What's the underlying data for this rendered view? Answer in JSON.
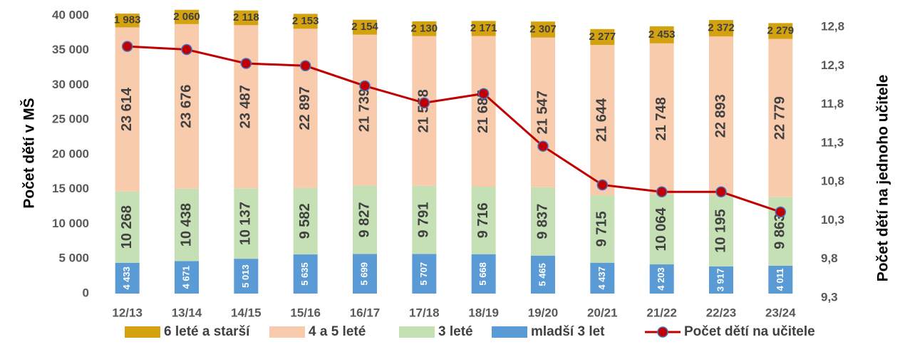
{
  "chart_data": {
    "type": "bar",
    "categories": [
      "12/13",
      "13/14",
      "14/15",
      "15/16",
      "16/17",
      "17/18",
      "18/19",
      "19/20",
      "20/21",
      "21/22",
      "22/23",
      "23/24"
    ],
    "stacked": true,
    "series": [
      {
        "name": "mladší 3 let",
        "color": "#5b9bd5",
        "values": [
          4433,
          4671,
          5013,
          5635,
          5699,
          5707,
          5668,
          5465,
          4437,
          4203,
          3917,
          4011
        ],
        "value_labels": [
          "4 433",
          "4 671",
          "5 013",
          "5 635",
          "5 699",
          "5 707",
          "5 668",
          "5 465",
          "4 437",
          "4 203",
          "3 917",
          "4 011"
        ]
      },
      {
        "name": "3 leté",
        "color": "#c5e0b4",
        "values": [
          10268,
          10438,
          10137,
          9582,
          9827,
          9791,
          9716,
          9837,
          9715,
          10064,
          10195,
          9863
        ],
        "value_labels": [
          "10 268",
          "10 438",
          "10 137",
          "9 582",
          "9 827",
          "9 791",
          "9 716",
          "9 837",
          "9 715",
          "10 064",
          "10 195",
          "9 863"
        ]
      },
      {
        "name": "4 a 5 leté",
        "color": "#f8cbad",
        "values": [
          23614,
          23676,
          23487,
          22897,
          21739,
          21558,
          21685,
          21547,
          21644,
          21748,
          22893,
          22779
        ],
        "value_labels": [
          "23 614",
          "23 676",
          "23 487",
          "22 897",
          "21 739",
          "21 558",
          "21 685",
          "21 547",
          "21 644",
          "21 748",
          "22 893",
          "22 779"
        ]
      },
      {
        "name": "6 leté a starší",
        "color": "#d4a20f",
        "values": [
          1983,
          2060,
          2118,
          2153,
          2154,
          2130,
          2171,
          2307,
          2277,
          2453,
          2372,
          2279
        ],
        "value_labels": [
          "1 983",
          "2 060",
          "2 118",
          "2 153",
          "2 154",
          "2 130",
          "2 171",
          "2 307",
          "2 277",
          "2 453",
          "2 372",
          "2 279"
        ]
      },
      {
        "name": "Počet dětí na učitele",
        "color": "#c00000",
        "type": "line",
        "axis": "y2",
        "values": [
          12.55,
          12.51,
          12.33,
          12.3,
          12.04,
          11.82,
          11.94,
          11.26,
          10.76,
          10.67,
          10.67,
          10.41
        ]
      }
    ],
    "ylabel": "Počet dětí v MŠ",
    "y2label": "Počet dětí na jednoho učitele",
    "ylim": [
      0,
      40000
    ],
    "yticks": [
      {
        "value": 0,
        "label": "0"
      },
      {
        "value": 5000,
        "label": "5 000"
      },
      {
        "value": 10000,
        "label": "10 000"
      },
      {
        "value": 15000,
        "label": "15 000"
      },
      {
        "value": 20000,
        "label": "20 000"
      },
      {
        "value": 25000,
        "label": "25 000"
      },
      {
        "value": 30000,
        "label": "30 000"
      },
      {
        "value": 35000,
        "label": "35 000"
      },
      {
        "value": 40000,
        "label": "40 000"
      }
    ],
    "y2lim": [
      9.3,
      12.8
    ],
    "y2ticks": [
      {
        "value": 9.3,
        "label": "9,3"
      },
      {
        "value": 9.8,
        "label": "9,8"
      },
      {
        "value": 10.3,
        "label": "10,3"
      },
      {
        "value": 10.8,
        "label": "10,8"
      },
      {
        "value": 11.3,
        "label": "11,3"
      },
      {
        "value": 11.8,
        "label": "11,8"
      },
      {
        "value": 12.3,
        "label": "12,3"
      },
      {
        "value": 12.8,
        "label": "12,8"
      }
    ],
    "legend": "bottom",
    "grid": false
  }
}
